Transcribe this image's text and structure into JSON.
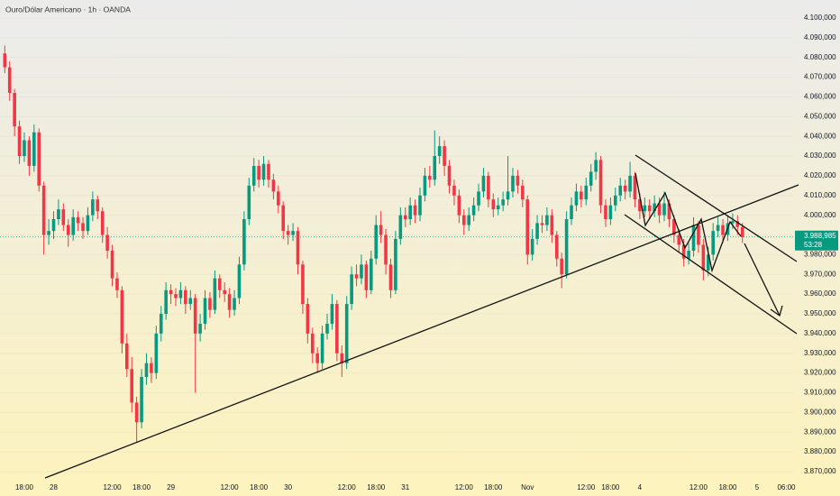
{
  "chart_data": {
    "type": "candlestick",
    "title": "Ouro/Dólar Americano · 1h · OANDA",
    "up_color": "#089981",
    "down_color": "#f23645",
    "ylim": [
      3866.8,
      4109.1
    ],
    "yticks": [
      {
        "value": 3870,
        "label": "3.870,000"
      },
      {
        "value": 3880,
        "label": "3.880,000"
      },
      {
        "value": 3890,
        "label": "3.890,000"
      },
      {
        "value": 3900,
        "label": "3.900,000"
      },
      {
        "value": 3910,
        "label": "3.910,000"
      },
      {
        "value": 3920,
        "label": "3.920,000"
      },
      {
        "value": 3930,
        "label": "3.930,000"
      },
      {
        "value": 3940,
        "label": "3.940,000"
      },
      {
        "value": 3950,
        "label": "3.950,000"
      },
      {
        "value": 3960,
        "label": "3.960,000"
      },
      {
        "value": 3970,
        "label": "3.970,000"
      },
      {
        "value": 3980,
        "label": "3.980,000"
      },
      {
        "value": 3990,
        "label": "3.990,000"
      },
      {
        "value": 4000,
        "label": "4.000,000"
      },
      {
        "value": 4010,
        "label": "4.010,000"
      },
      {
        "value": 4020,
        "label": "4.020,000"
      },
      {
        "value": 4030,
        "label": "4.030,000"
      },
      {
        "value": 4040,
        "label": "4.040,000"
      },
      {
        "value": 4050,
        "label": "4.050,000"
      },
      {
        "value": 4060,
        "label": "4.060,000"
      },
      {
        "value": 4070,
        "label": "4.070,000"
      },
      {
        "value": 4080,
        "label": "4.080,000"
      },
      {
        "value": 4090,
        "label": "4.090,000"
      },
      {
        "value": 4100,
        "label": "4.100,000"
      }
    ],
    "current_price": {
      "value": 3988.985,
      "label": "3.988,985"
    },
    "countdown": "53:28",
    "categories": [
      null,
      null,
      null,
      null,
      "18:00",
      null,
      null,
      null,
      null,
      null,
      "28",
      null,
      null,
      null,
      null,
      null,
      null,
      null,
      null,
      null,
      null,
      null,
      "12:00",
      null,
      null,
      null,
      null,
      null,
      "18:00",
      null,
      null,
      null,
      null,
      null,
      "29",
      null,
      null,
      null,
      null,
      null,
      null,
      null,
      null,
      null,
      null,
      null,
      "12:00",
      null,
      null,
      null,
      null,
      null,
      "18:00",
      null,
      null,
      null,
      null,
      null,
      "30",
      null,
      null,
      null,
      null,
      null,
      null,
      null,
      null,
      null,
      null,
      null,
      "12:00",
      null,
      null,
      null,
      null,
      null,
      "18:00",
      null,
      null,
      null,
      null,
      null,
      "31",
      null,
      null,
      null,
      null,
      null,
      null,
      null,
      null,
      null,
      null,
      null,
      "12:00",
      null,
      null,
      null,
      null,
      null,
      "18:00",
      null,
      null,
      null,
      null,
      null,
      null,
      "Nov",
      null,
      null,
      null,
      null,
      null,
      null,
      null,
      null,
      null,
      null,
      null,
      "12:00",
      null,
      null,
      null,
      null,
      "18:00",
      null,
      null,
      null,
      null,
      null,
      "4",
      null,
      null,
      null,
      null,
      null,
      null,
      null,
      null,
      null,
      null,
      null,
      "12:00",
      null,
      null,
      null,
      null,
      null,
      "18:00",
      null,
      null,
      null,
      null,
      null,
      "5",
      null,
      null,
      null,
      null,
      null,
      "06:00"
    ],
    "open": [
      4082,
      4075,
      4062,
      4045,
      4030,
      4038,
      4025,
      4042,
      4015,
      3990,
      3992,
      3998,
      4003,
      3995,
      3990,
      3999,
      3996,
      3992,
      4000,
      4008,
      4002,
      3990,
      3982,
      3968,
      3962,
      3935,
      3922,
      3905,
      3895,
      3918,
      3925,
      3920,
      3940,
      3950,
      3962,
      3960,
      3958,
      3962,
      3955,
      3958,
      3940,
      3945,
      3958,
      3952,
      3968,
      3962,
      3960,
      3952,
      3958,
      3975,
      3998,
      4015,
      4025,
      4018,
      4026,
      4018,
      4012,
      4005,
      3992,
      3990,
      3992,
      3975,
      3955,
      3940,
      3930,
      3925,
      3940,
      3945,
      3955,
      3930,
      3925,
      3955,
      3970,
      3968,
      3975,
      3962,
      3978,
      3995,
      3990,
      3975,
      3962,
      3988,
      4000,
      3998,
      4005,
      4000,
      4010,
      4020,
      4018,
      4030,
      4035,
      4025,
      4015,
      4010,
      4000,
      3995,
      4000,
      4005,
      4012,
      4020,
      4008,
      4003,
      4005,
      4008,
      4012,
      4020,
      4015,
      4008,
      3980,
      3988,
      3996,
      3995,
      4000,
      3990,
      3978,
      3970,
      3998,
      4005,
      4012,
      4008,
      4015,
      4022,
      4028,
      4005,
      3998,
      4005,
      4010,
      4015,
      4012,
      4020,
      4008,
      4002,
      4005,
      4002,
      4006,
      4000,
      4006,
      3998,
      3990,
      3985,
      3978,
      3982,
      3995,
      3985,
      3972,
      3980,
      3992,
      3995,
      3990,
      3996,
      3997,
      3994,
      null,
      null,
      null,
      null,
      null,
      null,
      null,
      null,
      null
    ],
    "high": [
      4086,
      4078,
      4064,
      4048,
      4042,
      4040,
      4046,
      4044,
      4017,
      3998,
      4002,
      4008,
      4006,
      3998,
      4003,
      4002,
      3999,
      4004,
      4012,
      4010,
      4004,
      3994,
      3985,
      3971,
      3964,
      3940,
      3928,
      3908,
      3922,
      3930,
      3928,
      3944,
      3954,
      3966,
      3965,
      3963,
      3966,
      3964,
      3962,
      3960,
      3950,
      3962,
      3961,
      3972,
      3970,
      3966,
      3963,
      3962,
      3979,
      4002,
      4019,
      4029,
      4028,
      4030,
      4028,
      4021,
      4015,
      4007,
      3995,
      3996,
      3994,
      3977,
      3958,
      3943,
      3933,
      3944,
      3950,
      3960,
      3957,
      3934,
      3959,
      3974,
      3975,
      3980,
      3977,
      3982,
      4000,
      4002,
      3993,
      3978,
      3992,
      4004,
      4004,
      4009,
      4008,
      4014,
      4024,
      4025,
      4043,
      4040,
      4038,
      4028,
      4018,
      4013,
      4003,
      4004,
      4009,
      4016,
      4024,
      4022,
      4011,
      4009,
      4012,
      4030,
      4024,
      4023,
      4018,
      4010,
      3993,
      4000,
      4000,
      4004,
      4003,
      3992,
      3981,
      4002,
      4009,
      4016,
      4015,
      4019,
      4026,
      4032,
      4030,
      4008,
      4009,
      4014,
      4019,
      4018,
      4027,
      4022,
      4011,
      4009,
      4008,
      4010,
      4009,
      4012,
      4008,
      4000,
      3993,
      3988,
      3986,
      3999,
      3997,
      3988,
      3984,
      3996,
      3999,
      3998,
      4000,
      4001,
      4000,
      3996,
      null,
      null,
      null,
      null,
      null,
      null,
      null,
      null,
      null
    ],
    "low": [
      4072,
      4058,
      4040,
      4026,
      4027,
      4020,
      4022,
      4012,
      3980,
      3985,
      3988,
      3995,
      3992,
      3984,
      3987,
      3992,
      3988,
      3990,
      3997,
      3998,
      3986,
      3978,
      3964,
      3958,
      3930,
      3918,
      3900,
      3885,
      3892,
      3914,
      3915,
      3917,
      3936,
      3947,
      3955,
      3954,
      3955,
      3950,
      3952,
      3910,
      3936,
      3942,
      3948,
      3950,
      3958,
      3956,
      3948,
      3949,
      3955,
      3972,
      3995,
      4012,
      4014,
      4015,
      4014,
      4008,
      4001,
      3988,
      3985,
      3987,
      3970,
      3950,
      3935,
      3925,
      3920,
      3922,
      3937,
      3942,
      3926,
      3918,
      3922,
      3952,
      3964,
      3965,
      3958,
      3960,
      3975,
      3986,
      3970,
      3958,
      3960,
      3985,
      3994,
      3995,
      3996,
      3997,
      4007,
      4014,
      4015,
      4026,
      4020,
      4011,
      4005,
      3996,
      3990,
      3992,
      3997,
      4002,
      4009,
      4004,
      3999,
      4000,
      4002,
      4005,
      4009,
      4011,
      4004,
      3975,
      3977,
      3985,
      3991,
      3992,
      3986,
      3974,
      3963,
      3968,
      3995,
      4002,
      4004,
      4005,
      4012,
      4018,
      4001,
      3994,
      3995,
      4002,
      4007,
      4008,
      4009,
      4004,
      3998,
      3999,
      3998,
      3999,
      3996,
      3997,
      3994,
      3986,
      3981,
      3974,
      3975,
      3979,
      3981,
      3967,
      3969,
      3977,
      3989,
      3986,
      3987,
      3993,
      3990,
      3986,
      null,
      null,
      null,
      null,
      null,
      null,
      null,
      null,
      null
    ],
    "close": [
      4075,
      4062,
      4045,
      4030,
      4038,
      4025,
      4042,
      4015,
      3990,
      3992,
      3998,
      4003,
      3995,
      3990,
      3999,
      3996,
      3992,
      4000,
      4008,
      4002,
      3990,
      3982,
      3968,
      3962,
      3935,
      3922,
      3905,
      3895,
      3918,
      3925,
      3920,
      3940,
      3950,
      3962,
      3960,
      3958,
      3962,
      3955,
      3958,
      3940,
      3945,
      3958,
      3952,
      3968,
      3962,
      3960,
      3952,
      3958,
      3975,
      3998,
      4015,
      4025,
      4018,
      4026,
      4018,
      4012,
      4005,
      3992,
      3990,
      3992,
      3975,
      3955,
      3940,
      3930,
      3925,
      3940,
      3945,
      3955,
      3930,
      3925,
      3955,
      3970,
      3968,
      3975,
      3962,
      3978,
      3995,
      3990,
      3975,
      3962,
      3988,
      4000,
      3998,
      4005,
      4000,
      4010,
      4020,
      4018,
      4030,
      4035,
      4025,
      4015,
      4010,
      4000,
      3995,
      4000,
      4005,
      4012,
      4020,
      4008,
      4003,
      4005,
      4008,
      4012,
      4020,
      4015,
      4008,
      3980,
      3988,
      3996,
      3995,
      4000,
      3990,
      3978,
      3970,
      3998,
      4005,
      4012,
      4008,
      4015,
      4022,
      4028,
      4005,
      3998,
      4005,
      4010,
      4015,
      4012,
      4020,
      4008,
      4002,
      4005,
      4002,
      4006,
      4000,
      4006,
      3998,
      3990,
      3985,
      3978,
      3982,
      3995,
      3985,
      3972,
      3980,
      3992,
      3995,
      3990,
      3996,
      3997,
      3994,
      3988.985,
      null,
      null,
      null,
      null,
      null,
      null,
      null,
      null,
      null
    ]
  }
}
